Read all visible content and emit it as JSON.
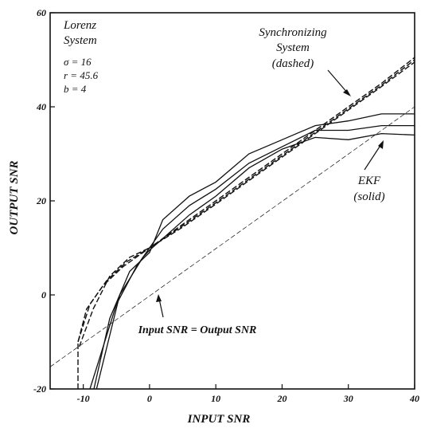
{
  "chart_data": {
    "type": "line",
    "title": "",
    "xlabel": "INPUT SNR",
    "ylabel": "OUTPUT SNR",
    "xlim": [
      -15,
      40
    ],
    "ylim": [
      -20,
      60
    ],
    "x_ticks": [
      -10,
      0,
      10,
      20,
      30,
      40
    ],
    "y_ticks": [
      -20,
      0,
      20,
      40,
      60
    ],
    "grid": false,
    "legend": "none",
    "annotations": {
      "system_title": [
        "Lorenz",
        "System"
      ],
      "params": [
        "σ = 16",
        "r = 45.6",
        "b = 4"
      ],
      "sync_label": [
        "Synchronizing",
        "System",
        "(dashed)"
      ],
      "ekf_label": [
        "EKF",
        "(solid)"
      ],
      "identity_label": "Input SNR = Output SNR"
    },
    "series": [
      {
        "style": "solid",
        "points": [
          [
            -8.4,
            -20
          ],
          [
            -6,
            -5
          ],
          [
            -3,
            5
          ],
          [
            0,
            9
          ],
          [
            2,
            16
          ],
          [
            6,
            21
          ],
          [
            10,
            24
          ],
          [
            15,
            30
          ],
          [
            20,
            33
          ],
          [
            25,
            36
          ],
          [
            30,
            37
          ],
          [
            35,
            38.5
          ],
          [
            40,
            38.5
          ]
        ]
      },
      {
        "style": "solid",
        "points": [
          [
            -9,
            -20
          ],
          [
            -5,
            -2
          ],
          [
            -2,
            6
          ],
          [
            0,
            10
          ],
          [
            2,
            14
          ],
          [
            6,
            19
          ],
          [
            10,
            22.5
          ],
          [
            15,
            28
          ],
          [
            20,
            31.5
          ],
          [
            25,
            35
          ],
          [
            30,
            35
          ],
          [
            35,
            36
          ],
          [
            40,
            36
          ]
        ]
      },
      {
        "style": "solid",
        "points": [
          [
            -8,
            -20
          ],
          [
            -4.5,
            0
          ],
          [
            -1,
            8
          ],
          [
            0,
            9.5
          ],
          [
            2,
            12
          ],
          [
            6,
            17
          ],
          [
            10,
            21
          ],
          [
            15,
            27
          ],
          [
            20,
            31
          ],
          [
            25,
            33.5
          ],
          [
            30,
            33
          ],
          [
            35,
            34.3
          ],
          [
            40,
            34
          ]
        ]
      },
      {
        "style": "dashed",
        "points": [
          [
            -10.8,
            -20
          ],
          [
            -10.8,
            -10
          ],
          [
            -9.5,
            -3
          ],
          [
            -7,
            2
          ],
          [
            -4,
            6
          ],
          [
            0,
            10
          ],
          [
            5,
            15
          ],
          [
            10,
            20
          ],
          [
            15,
            25
          ],
          [
            20,
            30
          ],
          [
            25,
            35
          ],
          [
            30,
            40
          ],
          [
            35,
            45
          ],
          [
            40,
            50.5
          ]
        ]
      },
      {
        "style": "dashed",
        "points": [
          [
            -10.8,
            -10
          ],
          [
            -9,
            -2
          ],
          [
            -6.5,
            3
          ],
          [
            -3.5,
            7
          ],
          [
            0,
            10
          ],
          [
            5,
            14.7
          ],
          [
            10,
            19.6
          ],
          [
            15,
            24.6
          ],
          [
            20,
            29.6
          ],
          [
            25,
            34.6
          ],
          [
            30,
            39.6
          ],
          [
            35,
            44.6
          ],
          [
            40,
            50
          ]
        ]
      },
      {
        "style": "dashed",
        "points": [
          [
            -10.6,
            -11
          ],
          [
            -8.5,
            -3
          ],
          [
            -6,
            4
          ],
          [
            -3,
            8
          ],
          [
            0,
            10
          ],
          [
            5,
            14.4
          ],
          [
            10,
            19.3
          ],
          [
            15,
            24.3
          ],
          [
            20,
            29.3
          ],
          [
            25,
            34.3
          ],
          [
            30,
            39.3
          ],
          [
            35,
            44.3
          ],
          [
            40,
            49.5
          ]
        ]
      },
      {
        "style": "identity",
        "points": [
          [
            -15,
            -15.3
          ],
          [
            40,
            40
          ]
        ]
      }
    ]
  }
}
